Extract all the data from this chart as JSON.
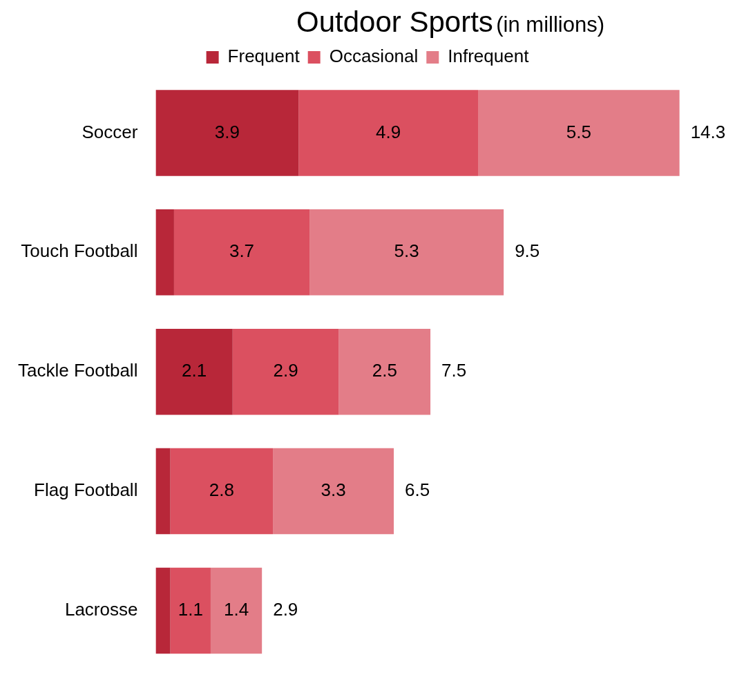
{
  "chart_data": {
    "type": "bar",
    "title": "Outdoor Sports",
    "subtitle": "(in millions)",
    "orientation": "horizontal",
    "stacked": true,
    "legend": "top",
    "categories": [
      "Soccer",
      "Touch Football",
      "Tackle Football",
      "Flag Football",
      "Lacrosse"
    ],
    "series": [
      {
        "name": "Frequent",
        "color": "#b82739",
        "values": [
          3.9,
          0.5,
          2.1,
          0.4,
          0.4
        ],
        "value_labels": [
          "3.9",
          null,
          "2.1",
          null,
          null
        ]
      },
      {
        "name": "Occasional",
        "color": "#db5060",
        "values": [
          4.9,
          3.7,
          2.9,
          2.8,
          1.1
        ],
        "value_labels": [
          "4.9",
          "3.7",
          "2.9",
          "2.8",
          "1.1"
        ]
      },
      {
        "name": "Infrequent",
        "color": "#e37d88",
        "values": [
          5.5,
          5.3,
          2.5,
          3.3,
          1.4
        ],
        "value_labels": [
          "5.5",
          "5.3",
          "2.5",
          "3.3",
          "1.4"
        ]
      }
    ],
    "totals": [
      "14.3",
      "9.5",
      "7.5",
      "6.5",
      "2.9"
    ]
  }
}
